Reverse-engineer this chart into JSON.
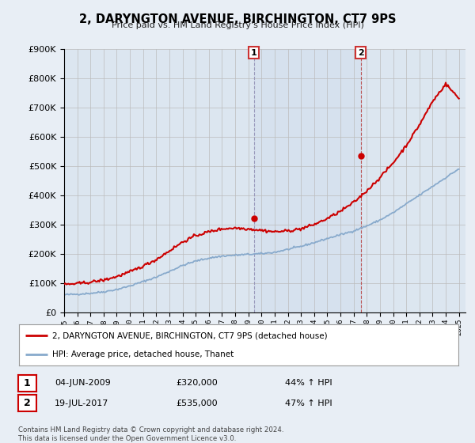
{
  "title": "2, DARYNGTON AVENUE, BIRCHINGTON, CT7 9PS",
  "subtitle": "Price paid vs. HM Land Registry's House Price Index (HPI)",
  "ylim": [
    0,
    900000
  ],
  "yticks": [
    0,
    100000,
    200000,
    300000,
    400000,
    500000,
    600000,
    700000,
    800000,
    900000
  ],
  "xmin": 1995.0,
  "xmax": 2025.5,
  "sale1_x": 2009.42,
  "sale1_y": 320000,
  "sale2_x": 2017.54,
  "sale2_y": 535000,
  "sale1_date": "04-JUN-2009",
  "sale1_price": "£320,000",
  "sale1_hpi": "44% ↑ HPI",
  "sale2_date": "19-JUL-2017",
  "sale2_price": "£535,000",
  "sale2_hpi": "47% ↑ HPI",
  "line1_color": "#cc0000",
  "line2_color": "#88aacc",
  "background_color": "#e8eef5",
  "plot_bg_color": "#dce6f0",
  "legend_line1": "2, DARYNGTON AVENUE, BIRCHINGTON, CT7 9PS (detached house)",
  "legend_line2": "HPI: Average price, detached house, Thanet",
  "footer": "Contains HM Land Registry data © Crown copyright and database right 2024.\nThis data is licensed under the Open Government Licence v3.0."
}
